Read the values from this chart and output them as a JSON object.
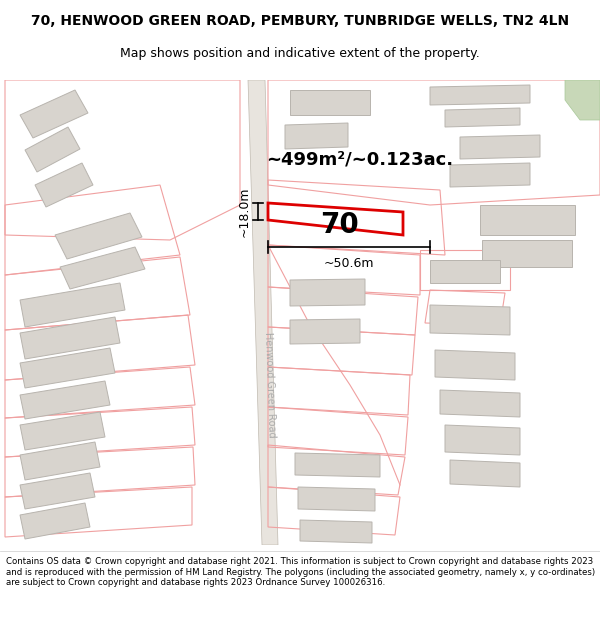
{
  "title": "70, HENWOOD GREEN ROAD, PEMBURY, TUNBRIDGE WELLS, TN2 4LN",
  "subtitle": "Map shows position and indicative extent of the property.",
  "area_text": "~499m²/~0.123ac.",
  "label_70": "70",
  "dim_width": "~50.6m",
  "dim_height": "~18.0m",
  "road_label": "Henwood Green Road",
  "footer": "Contains OS data © Crown copyright and database right 2021. This information is subject to Crown copyright and database rights 2023 and is reproduced with the permission of HM Land Registry. The polygons (including the associated geometry, namely x, y co-ordinates) are subject to Crown copyright and database rights 2023 Ordnance Survey 100026316.",
  "map_bg": "#ffffff",
  "road_fill": "#e8e4de",
  "road_edge": "#c0bab0",
  "plot_line_color": "#dd0000",
  "plot_line_thin": "#f0a0a0",
  "building_fill": "#d8d4ce",
  "building_edge": "#b8b4ae",
  "green_fill": "#c8d8b8",
  "green_edge": "#a8c898",
  "text_color": "#000000",
  "dim_line_color": "#000000"
}
